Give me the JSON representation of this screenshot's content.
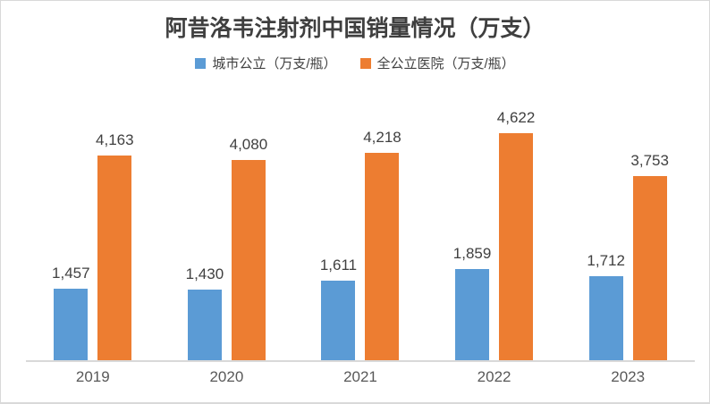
{
  "title": "阿昔洛韦注射剂中国销量情况（万支）",
  "chart_data": {
    "type": "bar",
    "title": "阿昔洛韦注射剂中国销量情况（万支）",
    "categories": [
      "2019",
      "2020",
      "2021",
      "2022",
      "2023"
    ],
    "series": [
      {
        "name": "城市公立（万支/瓶）",
        "color": "#5B9BD5",
        "values": [
          1457,
          1430,
          1611,
          1859,
          1712
        ]
      },
      {
        "name": "全公立医院（万支/瓶）",
        "color": "#ED7D31",
        "values": [
          4163,
          4080,
          4218,
          4622,
          3753
        ]
      }
    ],
    "ylim": [
      0,
      5000
    ],
    "grid": false,
    "legend_position": "top",
    "data_labels": true,
    "number_format": "thousands-comma"
  },
  "styles": {
    "title_color": "#3f3f3f",
    "data_label_color": "#404040",
    "axis_label_color": "#595959",
    "axis_line_color": "#d9d9d9",
    "frame_border_color": "#d9d9d9",
    "background": "#ffffff"
  }
}
